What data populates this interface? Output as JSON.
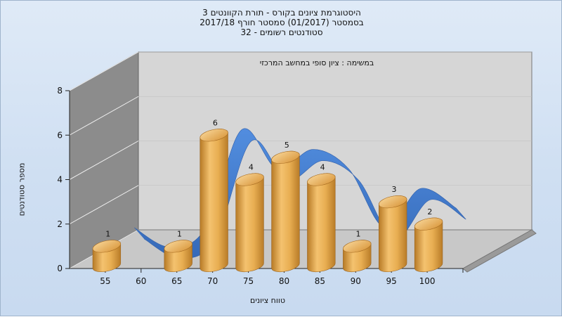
{
  "chart_data": {
    "type": "bar",
    "title": [
      "היסטוגרמת ציונים בקורס - תורת הקוונטים 3",
      "בסמסטר  (01/2017)  סמסטר חורף 2017/18",
      "סטודנטים רשומים - 32"
    ],
    "subtitle": "במשימה : ציון סופי במחשב המרכזי",
    "xlabel": "טווח ציונים",
    "ylabel": "מספר סטודנטים",
    "ylim": [
      0,
      8
    ],
    "yticks": [
      "0",
      "2",
      "4",
      "6",
      "8"
    ],
    "x_ticks": [
      "55",
      "60",
      "65",
      "70",
      "75",
      "80",
      "85",
      "90",
      "95",
      "100"
    ],
    "bars": [
      {
        "x": 55,
        "value": 1,
        "label": "1"
      },
      {
        "x": 65,
        "value": 1,
        "label": "1"
      },
      {
        "x": 70,
        "value": 6,
        "label": "6"
      },
      {
        "x": 75,
        "value": 4,
        "label": "4"
      },
      {
        "x": 80,
        "value": 5,
        "label": "5"
      },
      {
        "x": 85,
        "value": 4,
        "label": "4"
      },
      {
        "x": 90,
        "value": 1,
        "label": "1"
      },
      {
        "x": 95,
        "value": 3,
        "label": "3"
      },
      {
        "x": 100,
        "value": 2,
        "label": "2"
      }
    ],
    "curve": {
      "style": "ribbon"
    },
    "grid": true,
    "colors": {
      "bar": "#e3a64b",
      "ribbon": "#3a78cc",
      "wall": "#8f8f8f",
      "back": "#d4d4d4"
    }
  }
}
